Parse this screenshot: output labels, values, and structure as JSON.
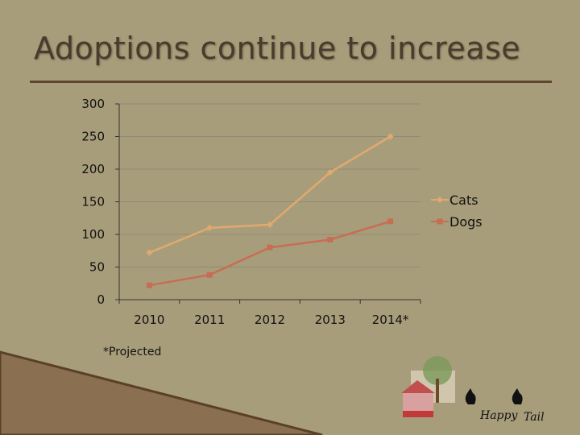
{
  "slide": {
    "title": "Adoptions continue to increase",
    "footnote": "*Projected"
  },
  "colors": {
    "background": "#a89d7a",
    "title": "#4a3b2c",
    "rule": "#5e4630",
    "cats": "#e0a96f",
    "dogs": "#c76d54",
    "gridline": "#8f8a78"
  },
  "chart_data": {
    "type": "line",
    "title": "",
    "xlabel": "",
    "ylabel": "",
    "categories": [
      "2010",
      "2011",
      "2012",
      "2013",
      "2014*"
    ],
    "ylim": [
      0,
      300
    ],
    "yticks": [
      "0",
      "50",
      "100",
      "150",
      "200",
      "250",
      "300"
    ],
    "grid": true,
    "legend": "right",
    "series": [
      {
        "name": "Cats",
        "values": [
          72,
          110,
          115,
          195,
          250
        ]
      },
      {
        "name": "Dogs",
        "values": [
          22,
          38,
          80,
          92,
          120
        ]
      }
    ]
  },
  "logo": {
    "text_left": "Happy",
    "text_right": "Tail"
  }
}
